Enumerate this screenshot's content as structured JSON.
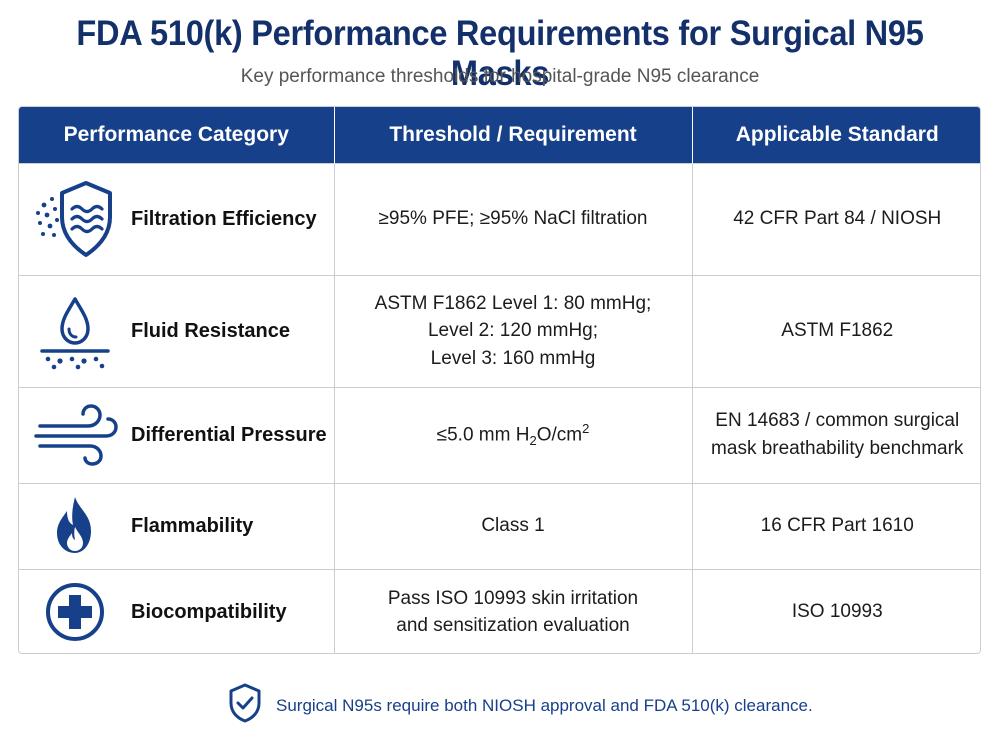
{
  "header": {
    "title": "FDA 510(k) Performance Requirements for Surgical N95 Masks",
    "subtitle": "Key performance thresholds for hospital-grade N95 clearance"
  },
  "table": {
    "columns": [
      "Performance Category",
      "Threshold / Requirement",
      "Applicable Standard"
    ],
    "rows": [
      {
        "icon": "shield-filtration-icon",
        "category": "Filtration Efficiency",
        "threshold": [
          "≥95% PFE; ≥95% NaCl filtration"
        ],
        "standard": [
          "42 CFR Part 84 / NIOSH"
        ]
      },
      {
        "icon": "water-drop-icon",
        "category": "Fluid Resistance",
        "threshold": [
          "ASTM F1862 Level 1: 80 mmHg;",
          "Level 2: 120 mmHg;",
          "Level 3: 160 mmHg"
        ],
        "standard": [
          "ASTM F1862"
        ]
      },
      {
        "icon": "wind-icon",
        "category": "Differential Pressure",
        "threshold": [
          "≤5.0 mm H",
          "2",
          "O/cm",
          "2"
        ],
        "standard": [
          "EN 14683 / common surgical",
          "mask breathability benchmark"
        ]
      },
      {
        "icon": "flame-icon",
        "category": "Flammability",
        "threshold": [
          "Class 1"
        ],
        "standard": [
          "16 CFR Part 1610"
        ]
      },
      {
        "icon": "medical-cross-icon",
        "category": "Biocompatibility",
        "threshold": [
          "Pass ISO 10993 skin irritation",
          "and sensitization evaluation"
        ],
        "standard": [
          "ISO 10993"
        ]
      }
    ]
  },
  "footer": {
    "icon": "shield-check-icon",
    "text": "Surgical N95s require both NIOSH approval and FDA 510(k) clearance."
  },
  "colors": {
    "primary": "#17408b",
    "title": "#13306b",
    "border": "#c9cdd4"
  }
}
